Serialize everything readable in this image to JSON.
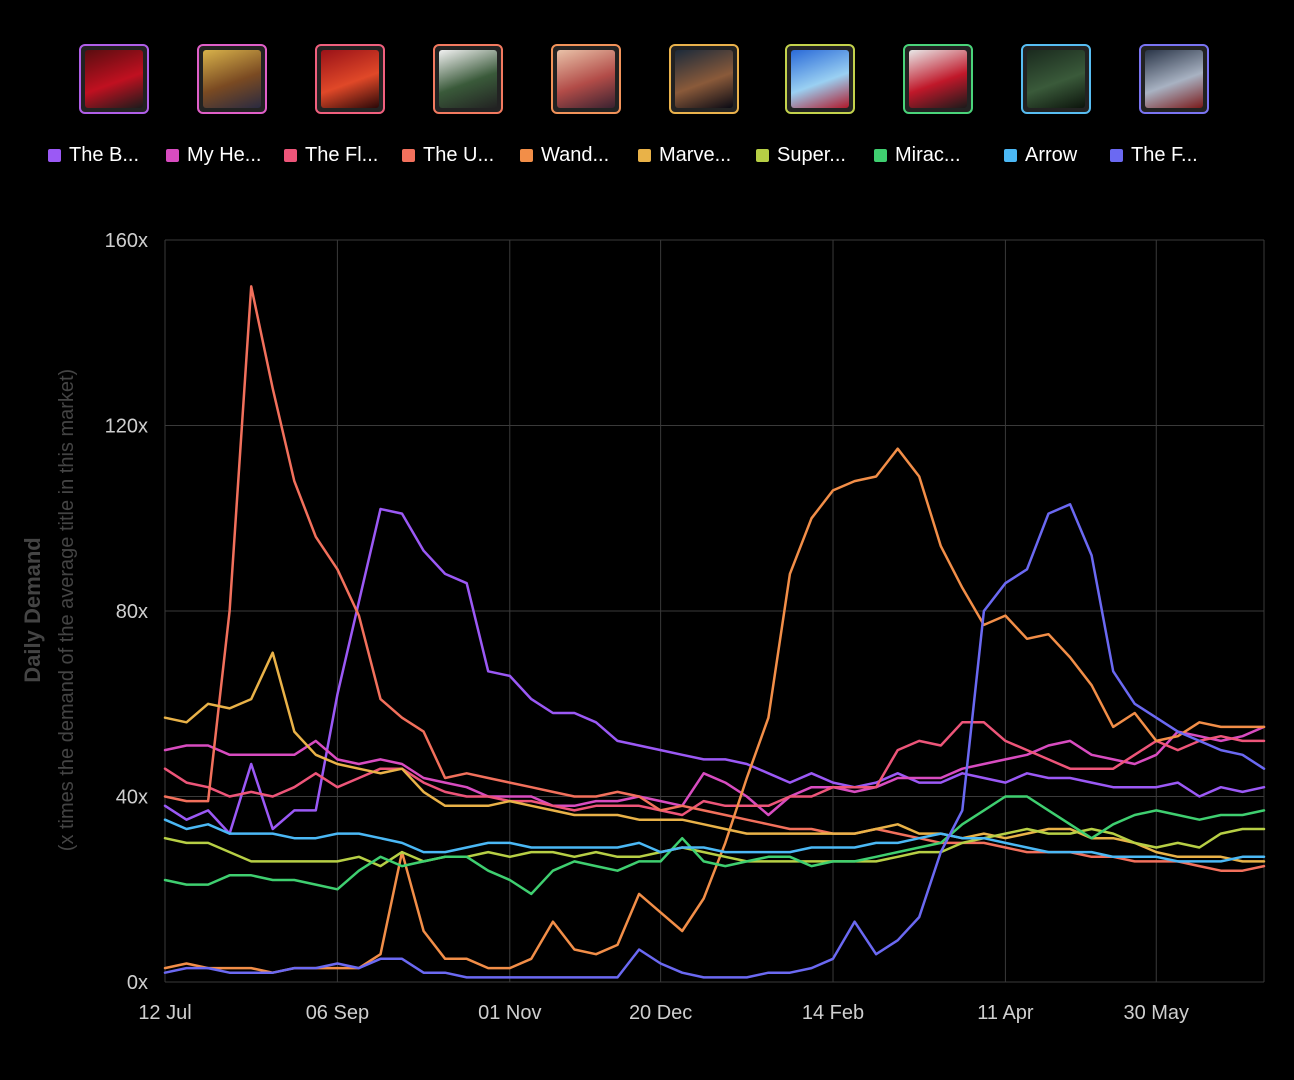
{
  "chart_data": {
    "type": "line",
    "title": "",
    "ylabel": "Daily Demand",
    "ylabel_sub": "(x times the demand of the average title in this market)",
    "ylim": [
      0,
      160
    ],
    "y_ticks": [
      "0x",
      "40x",
      "80x",
      "120x",
      "160x"
    ],
    "y_tick_values": [
      0,
      40,
      80,
      120,
      160
    ],
    "x_ticks": [
      "12 Jul",
      "06 Sep",
      "01 Nov",
      "20 Dec",
      "14 Feb",
      "11 Apr",
      "30 May"
    ],
    "x_tick_positions": [
      0,
      8,
      16,
      23,
      31,
      39,
      46
    ],
    "n_points": 52,
    "grid": true,
    "legend_position": "top",
    "series": [
      {
        "name": "The B...",
        "color": "#9b59f5",
        "values": [
          38,
          35,
          37,
          32,
          47,
          33,
          37,
          37,
          62,
          82,
          102,
          101,
          93,
          88,
          86,
          67,
          66,
          61,
          58,
          58,
          56,
          52,
          51,
          50,
          49,
          48,
          48,
          47,
          45,
          43,
          45,
          43,
          42,
          43,
          45,
          43,
          43,
          45,
          44,
          43,
          45,
          44,
          44,
          43,
          42,
          42,
          42,
          43,
          40,
          42,
          41,
          42
        ]
      },
      {
        "name": "My He...",
        "color": "#d84cc0",
        "values": [
          50,
          51,
          51,
          49,
          49,
          49,
          49,
          52,
          48,
          47,
          48,
          47,
          44,
          43,
          42,
          40,
          40,
          40,
          38,
          38,
          39,
          39,
          40,
          39,
          38,
          45,
          43,
          40,
          36,
          40,
          42,
          42,
          41,
          42,
          44,
          44,
          44,
          46,
          47,
          48,
          49,
          51,
          52,
          49,
          48,
          47,
          49,
          54,
          53,
          52,
          53,
          55
        ]
      },
      {
        "name": "The Fl...",
        "color": "#ed5579",
        "values": [
          46,
          43,
          42,
          40,
          41,
          40,
          42,
          45,
          42,
          44,
          46,
          46,
          43,
          41,
          40,
          40,
          39,
          39,
          38,
          37,
          38,
          38,
          38,
          37,
          36,
          39,
          38,
          38,
          38,
          40,
          40,
          42,
          42,
          42,
          50,
          52,
          51,
          56,
          56,
          52,
          50,
          48,
          46,
          46,
          46,
          49,
          52,
          50,
          52,
          53,
          52,
          52
        ]
      },
      {
        "name": "The U...",
        "color": "#f2705c",
        "values": [
          40,
          39,
          39,
          80,
          150,
          128,
          108,
          96,
          89,
          79,
          61,
          57,
          54,
          44,
          45,
          44,
          43,
          42,
          41,
          40,
          40,
          41,
          40,
          37,
          38,
          37,
          36,
          35,
          34,
          33,
          33,
          32,
          32,
          33,
          32,
          31,
          30,
          30,
          30,
          29,
          28,
          28,
          28,
          27,
          27,
          26,
          26,
          26,
          25,
          24,
          24,
          25
        ]
      },
      {
        "name": "Wand...",
        "color": "#f28e48",
        "values": [
          3,
          4,
          3,
          3,
          3,
          2,
          3,
          3,
          3,
          3,
          6,
          28,
          11,
          5,
          5,
          3,
          3,
          5,
          13,
          7,
          6,
          8,
          19,
          15,
          11,
          18,
          30,
          44,
          57,
          88,
          100,
          106,
          108,
          109,
          115,
          109,
          94,
          85,
          77,
          79,
          74,
          75,
          70,
          64,
          55,
          58,
          52,
          53,
          56,
          55,
          55,
          55
        ]
      },
      {
        "name": "Marve...",
        "color": "#e9b248",
        "values": [
          57,
          56,
          60,
          59,
          61,
          71,
          54,
          49,
          47,
          46,
          45,
          46,
          41,
          38,
          38,
          38,
          39,
          38,
          37,
          36,
          36,
          36,
          35,
          35,
          35,
          34,
          33,
          32,
          32,
          32,
          32,
          32,
          32,
          33,
          34,
          32,
          32,
          31,
          32,
          31,
          32,
          33,
          33,
          31,
          31,
          30,
          28,
          27,
          27,
          27,
          26,
          26
        ]
      },
      {
        "name": "Super...",
        "color": "#b7cf45",
        "values": [
          31,
          30,
          30,
          28,
          26,
          26,
          26,
          26,
          26,
          27,
          25,
          28,
          26,
          27,
          27,
          28,
          27,
          28,
          28,
          27,
          28,
          27,
          27,
          28,
          29,
          28,
          27,
          26,
          26,
          26,
          26,
          26,
          26,
          26,
          27,
          28,
          28,
          30,
          31,
          32,
          33,
          32,
          32,
          33,
          32,
          30,
          29,
          30,
          29,
          32,
          33,
          33
        ]
      },
      {
        "name": "Mirac...",
        "color": "#3fcf70",
        "values": [
          22,
          21,
          21,
          23,
          23,
          22,
          22,
          21,
          20,
          24,
          27,
          25,
          26,
          27,
          27,
          24,
          22,
          19,
          24,
          26,
          25,
          24,
          26,
          26,
          31,
          26,
          25,
          26,
          27,
          27,
          25,
          26,
          26,
          27,
          28,
          29,
          30,
          34,
          37,
          40,
          40,
          37,
          34,
          31,
          34,
          36,
          37,
          36,
          35,
          36,
          36,
          37
        ]
      },
      {
        "name": "Arrow",
        "color": "#4bb8f5",
        "values": [
          35,
          33,
          34,
          32,
          32,
          32,
          31,
          31,
          32,
          32,
          31,
          30,
          28,
          28,
          29,
          30,
          30,
          29,
          29,
          29,
          29,
          29,
          30,
          28,
          29,
          29,
          28,
          28,
          28,
          28,
          29,
          29,
          29,
          30,
          30,
          31,
          32,
          31,
          31,
          30,
          29,
          28,
          28,
          28,
          27,
          27,
          27,
          26,
          26,
          26,
          27,
          27
        ]
      },
      {
        "name": "The F...",
        "color": "#6b69f2",
        "values": [
          2,
          3,
          3,
          2,
          2,
          2,
          3,
          3,
          4,
          3,
          5,
          5,
          2,
          2,
          1,
          1,
          1,
          1,
          1,
          1,
          1,
          1,
          7,
          4,
          2,
          1,
          1,
          1,
          2,
          2,
          3,
          5,
          13,
          6,
          9,
          14,
          28,
          37,
          80,
          86,
          89,
          101,
          103,
          92,
          67,
          60,
          57,
          54,
          52,
          50,
          49,
          46
        ]
      }
    ]
  },
  "thumbnails": [
    {
      "name": "The B...",
      "color": "#b05fe8",
      "art": [
        "#5a0d10",
        "#c01020",
        "#1b1b1b"
      ]
    },
    {
      "name": "My He...",
      "color": "#e05fc8",
      "art": [
        "#d8b24a",
        "#7a4a22",
        "#2a2a40"
      ]
    },
    {
      "name": "The Fl...",
      "color": "#f0607e",
      "art": [
        "#9a1218",
        "#e04828",
        "#2a0808"
      ]
    },
    {
      "name": "The U...",
      "color": "#f37a60",
      "art": [
        "#f2f2f2",
        "#3a5a3a",
        "#222222"
      ]
    },
    {
      "name": "Wand...",
      "color": "#f2935a",
      "art": [
        "#e9c2a8",
        "#b24c48",
        "#3a2230"
      ]
    },
    {
      "name": "Marve...",
      "color": "#eab24c",
      "art": [
        "#1c2a3a",
        "#8a5a3a",
        "#0a0a14"
      ]
    },
    {
      "name": "Super...",
      "color": "#c3d24c",
      "art": [
        "#2a6ad8",
        "#9ad0f2",
        "#b0182a"
      ]
    },
    {
      "name": "Mirac...",
      "color": "#4ad47a",
      "art": [
        "#e8e8e8",
        "#c0182a",
        "#1a1a1a"
      ]
    },
    {
      "name": "Arrow",
      "color": "#58bdf2",
      "art": [
        "#1a2a1e",
        "#3a5a3a",
        "#0c140c"
      ]
    },
    {
      "name": "The F...",
      "color": "#7a74f2",
      "art": [
        "#2a3548",
        "#a8b2c2",
        "#7a1a1a"
      ]
    }
  ]
}
